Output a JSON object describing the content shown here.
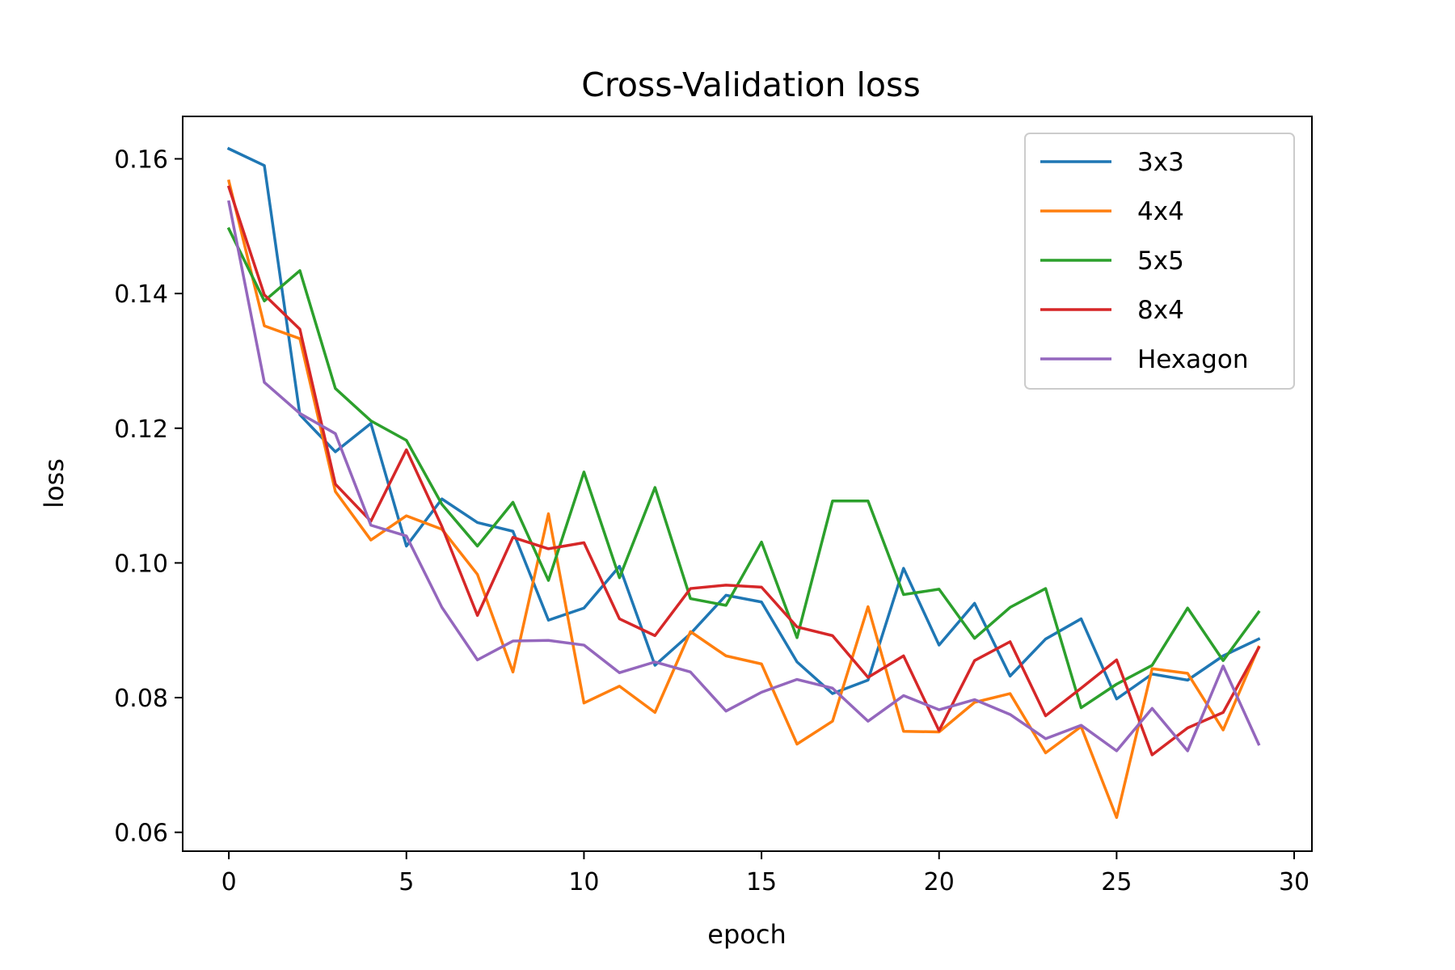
{
  "chart_data": {
    "type": "line",
    "title": "Cross-Validation loss",
    "xlabel": "epoch",
    "ylabel": "loss",
    "xlim": [
      -1.3,
      30.5
    ],
    "ylim": [
      0.0572,
      0.1663
    ],
    "xticks": [
      0,
      5,
      10,
      15,
      20,
      25,
      30
    ],
    "yticks": [
      0.06,
      0.08,
      0.1,
      0.12,
      0.14,
      0.16
    ],
    "xtick_labels": [
      "0",
      "5",
      "10",
      "15",
      "20",
      "25",
      "30"
    ],
    "ytick_labels": [
      "0.06",
      "0.08",
      "0.10",
      "0.12",
      "0.14",
      "0.16"
    ],
    "grid": false,
    "legend_position": "top-right",
    "x": [
      0,
      1,
      2,
      3,
      4,
      5,
      6,
      7,
      8,
      9,
      10,
      11,
      12,
      13,
      14,
      15,
      16,
      17,
      18,
      19,
      20,
      21,
      22,
      23,
      24,
      25,
      26,
      27,
      28,
      29
    ],
    "series": [
      {
        "name": "3x3",
        "color": "#1f77b4",
        "values": [
          0.1615,
          0.159,
          0.122,
          0.1165,
          0.1207,
          0.1025,
          0.1095,
          0.106,
          0.1047,
          0.0915,
          0.0933,
          0.0995,
          0.0848,
          0.0895,
          0.0952,
          0.0942,
          0.0853,
          0.0806,
          0.0826,
          0.0992,
          0.0878,
          0.094,
          0.0832,
          0.0887,
          0.0917,
          0.0798,
          0.0835,
          0.0826,
          0.0862,
          0.0887
        ]
      },
      {
        "name": "4x4",
        "color": "#ff7f0e",
        "values": [
          0.1567,
          0.1352,
          0.1333,
          0.1106,
          0.1034,
          0.107,
          0.105,
          0.0983,
          0.0838,
          0.1073,
          0.0792,
          0.0817,
          0.0778,
          0.0898,
          0.0862,
          0.085,
          0.0731,
          0.0765,
          0.0935,
          0.075,
          0.0749,
          0.0793,
          0.0806,
          0.0718,
          0.0757,
          0.0622,
          0.0843,
          0.0836,
          0.0752,
          0.0875
        ]
      },
      {
        "name": "5x5",
        "color": "#2ca02c",
        "values": [
          0.1496,
          0.1389,
          0.1434,
          0.1259,
          0.1211,
          0.1182,
          0.1087,
          0.1025,
          0.109,
          0.0974,
          0.1135,
          0.0978,
          0.1112,
          0.0947,
          0.0937,
          0.1031,
          0.0889,
          0.1092,
          0.1092,
          0.0953,
          0.0961,
          0.0888,
          0.0934,
          0.0962,
          0.0785,
          0.082,
          0.0848,
          0.0933,
          0.0855,
          0.0927
        ]
      },
      {
        "name": "8x4",
        "color": "#d62728",
        "values": [
          0.1558,
          0.1398,
          0.1347,
          0.1117,
          0.1062,
          0.1168,
          0.1054,
          0.0922,
          0.1038,
          0.1021,
          0.103,
          0.0917,
          0.0892,
          0.0962,
          0.0967,
          0.0964,
          0.0905,
          0.0892,
          0.083,
          0.0862,
          0.0751,
          0.0855,
          0.0883,
          0.0773,
          0.0814,
          0.0856,
          0.0715,
          0.0755,
          0.0778,
          0.0874
        ]
      },
      {
        "name": "Hexagon",
        "color": "#9467bd",
        "values": [
          0.1536,
          0.1268,
          0.1222,
          0.1192,
          0.1056,
          0.104,
          0.0934,
          0.0856,
          0.0884,
          0.0885,
          0.0878,
          0.0837,
          0.0853,
          0.0838,
          0.078,
          0.0808,
          0.0827,
          0.0814,
          0.0765,
          0.0803,
          0.0782,
          0.0797,
          0.0775,
          0.0739,
          0.0759,
          0.0721,
          0.0784,
          0.0721,
          0.0847,
          0.0731
        ]
      }
    ]
  }
}
